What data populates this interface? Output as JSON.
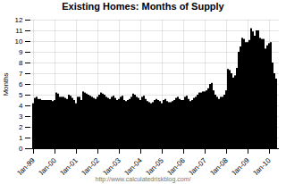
{
  "chart_data": {
    "type": "bar",
    "title": "Existing Homes: Months of Supply",
    "ylabel": "Months",
    "annotations": [
      "http://www.calculatedriskblog.com/"
    ],
    "categories": [
      "Jan-99",
      null,
      null,
      null,
      null,
      null,
      null,
      null,
      null,
      null,
      null,
      null,
      "Jan-00",
      null,
      null,
      null,
      null,
      null,
      null,
      null,
      null,
      null,
      null,
      null,
      "Jan-01",
      null,
      null,
      null,
      null,
      null,
      null,
      null,
      null,
      null,
      null,
      null,
      "Jan-02",
      null,
      null,
      null,
      null,
      null,
      null,
      null,
      null,
      null,
      null,
      null,
      "Jan-03",
      null,
      null,
      null,
      null,
      null,
      null,
      null,
      null,
      null,
      null,
      null,
      "Jan-04",
      null,
      null,
      null,
      null,
      null,
      null,
      null,
      null,
      null,
      null,
      null,
      "Jan-05",
      null,
      null,
      null,
      null,
      null,
      null,
      null,
      null,
      null,
      null,
      null,
      "Jan-06",
      null,
      null,
      null,
      null,
      null,
      null,
      null,
      null,
      null,
      null,
      null,
      "Jan-07",
      null,
      null,
      null,
      null,
      null,
      null,
      null,
      null,
      null,
      null,
      null,
      "Jan-08",
      null,
      null,
      null,
      null,
      null,
      null,
      null,
      null,
      null,
      null,
      null,
      "Jan-09",
      null,
      null,
      null,
      null,
      null,
      null,
      null,
      null,
      null,
      null,
      null,
      "Jan-10",
      null,
      null,
      null,
      null
    ],
    "values": [
      4.2,
      4.7,
      4.8,
      4.6,
      4.6,
      4.5,
      4.5,
      4.5,
      4.5,
      4.5,
      4.5,
      4.4,
      4.5,
      5.2,
      5.1,
      4.8,
      4.8,
      4.8,
      4.7,
      4.6,
      5.0,
      4.9,
      4.7,
      4.5,
      4.2,
      4.8,
      4.8,
      4.5,
      5.3,
      5.2,
      5.1,
      5.0,
      4.9,
      4.8,
      4.7,
      4.6,
      4.8,
      5.0,
      5.2,
      5.1,
      5.0,
      4.8,
      4.7,
      4.6,
      4.8,
      4.9,
      4.7,
      4.5,
      4.6,
      4.8,
      4.9,
      4.5,
      4.4,
      4.5,
      4.6,
      4.8,
      5.1,
      5.0,
      4.8,
      4.7,
      4.5,
      4.8,
      4.9,
      4.6,
      4.4,
      4.3,
      4.2,
      4.3,
      4.5,
      4.6,
      4.5,
      4.4,
      4.2,
      4.5,
      4.6,
      4.4,
      4.3,
      4.3,
      4.4,
      4.5,
      4.7,
      4.8,
      4.6,
      4.5,
      4.5,
      4.8,
      4.9,
      4.6,
      4.4,
      4.5,
      4.7,
      4.8,
      5.0,
      5.2,
      5.2,
      5.3,
      5.3,
      5.4,
      5.6,
      6.0,
      6.1,
      5.4,
      5.0,
      4.8,
      4.6,
      4.8,
      4.8,
      5.0,
      5.4,
      7.4,
      7.3,
      7.0,
      6.6,
      6.8,
      7.5,
      9.0,
      9.5,
      10.3,
      10.2,
      9.9,
      9.9,
      10.1,
      11.2,
      10.9,
      10.5,
      11.0,
      11.0,
      10.3,
      10.2,
      10.2,
      9.3,
      9.6,
      9.8,
      9.9,
      8.0,
      7.0,
      6.5
    ],
    "ylim": [
      0,
      12
    ],
    "yticks": [
      0,
      1,
      2,
      3,
      4,
      5,
      6,
      7,
      8,
      9,
      10,
      11,
      12
    ],
    "grid": true
  }
}
